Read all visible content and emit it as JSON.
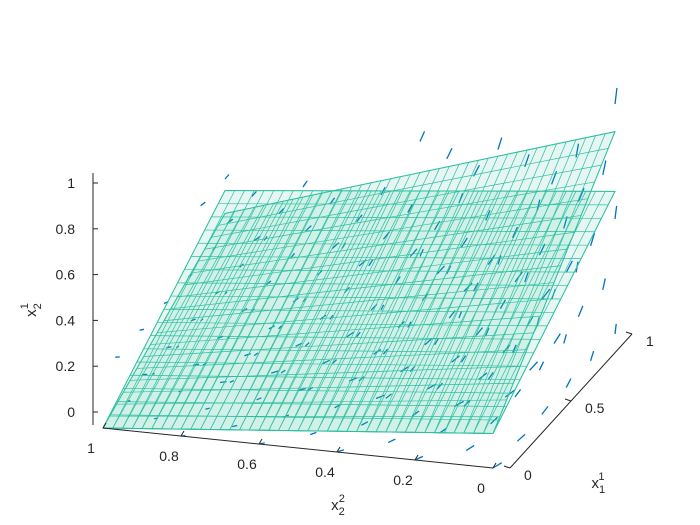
{
  "chart_data": {
    "type": "3d-surface-quiver",
    "axes": {
      "z": {
        "label": "x",
        "label_sub": "2",
        "label_sup": "1",
        "ticks": [
          "0",
          "0.2",
          "0.4",
          "0.6",
          "0.8",
          "1"
        ],
        "values": [
          0,
          0.2,
          0.4,
          0.6,
          0.8,
          1
        ],
        "range": [
          0,
          1
        ]
      },
      "x": {
        "label": "x",
        "label_sub": "2",
        "label_sup": "2",
        "ticks": [
          "1",
          "0.8",
          "0.6",
          "0.4",
          "0.2",
          "0"
        ],
        "values": [
          1,
          0.8,
          0.6,
          0.4,
          0.2,
          0
        ],
        "range": [
          0,
          1
        ]
      },
      "y": {
        "label": "x",
        "label_sub": "1",
        "label_sup": "1",
        "ticks": [
          "0",
          "0.5",
          "1"
        ],
        "values": [
          0,
          0.5,
          1
        ],
        "range": [
          0,
          1
        ]
      }
    },
    "surfaces": [
      {
        "description_hidden": true,
        "color": "#2ebfa0",
        "corners": [
          [
            1,
            0,
            0
          ],
          [
            0,
            0,
            0.15
          ],
          [
            0,
            1,
            0.62
          ],
          [
            1,
            1,
            0.45
          ]
        ]
      },
      {
        "description_hidden": true,
        "color": "#2ebfa0",
        "corners": [
          [
            1,
            0,
            0
          ],
          [
            0,
            0,
            0.15
          ],
          [
            0,
            1,
            0.88
          ],
          [
            1,
            1,
            0.35
          ]
        ]
      }
    ],
    "quiver_color": "#0072bd",
    "surface_color": "#2ebfa0",
    "axis_color": "#262626",
    "grid": false
  }
}
